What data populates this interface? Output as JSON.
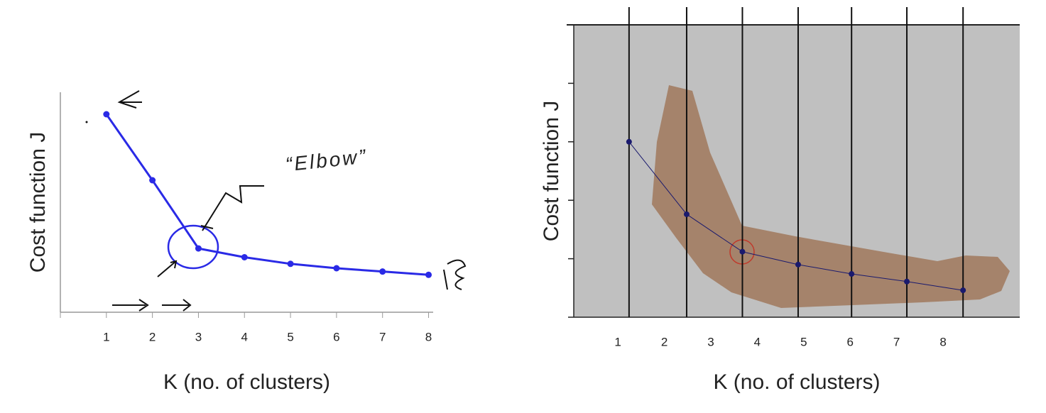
{
  "chart_data": [
    {
      "type": "line",
      "y_label": "Cost function J",
      "x_label": "K (no. of clusters)",
      "annotation": "“Elbow”",
      "x": [
        1,
        2,
        3,
        4,
        5,
        6,
        7,
        8
      ],
      "values": [
        9.0,
        6.0,
        2.9,
        2.5,
        2.2,
        2.0,
        1.85,
        1.7
      ],
      "color": "#2a2ae6",
      "xlim": [
        0,
        8.1
      ],
      "xticks": [
        1,
        2,
        3,
        4,
        5,
        6,
        7,
        8
      ],
      "ylim": [
        0,
        10
      ]
    },
    {
      "type": "line",
      "y_label": "Cost function J",
      "x_label": "K (no. of clusters)",
      "x": [
        1.24,
        2.48,
        3.68,
        4.88,
        6.03,
        7.22,
        8.43
      ],
      "values": [
        3.0,
        1.76,
        1.12,
        0.9,
        0.74,
        0.61,
        0.46
      ],
      "color": "#1a1a6e",
      "xlim": [
        0.05,
        9.65
      ],
      "xticks": [
        1,
        2,
        3,
        4,
        5,
        6,
        7,
        8
      ],
      "ylim": [
        0,
        5
      ],
      "yticks": [
        0,
        1,
        2,
        3,
        4,
        5
      ]
    }
  ]
}
